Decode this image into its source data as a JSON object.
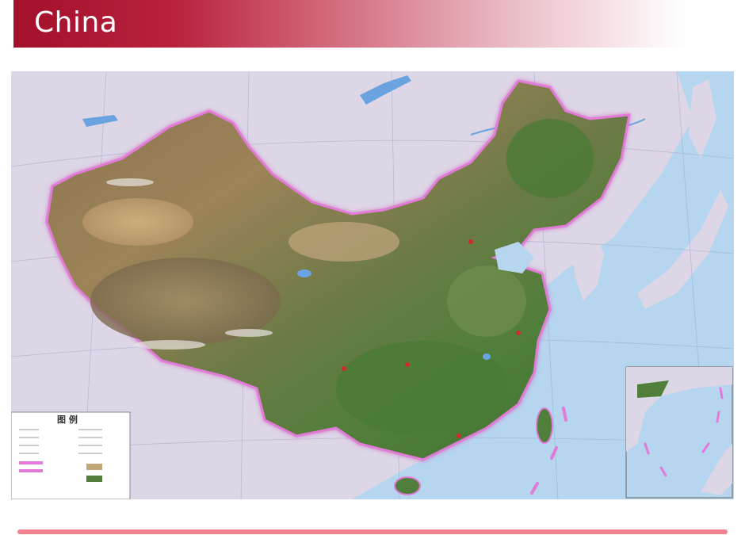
{
  "slide": {
    "title": "China"
  },
  "map": {
    "legend_heading": "图 例",
    "colors": {
      "ocean": "#b6d5ef",
      "land_neighbors": "#dcd6e6",
      "border_glow": "#e27ad8",
      "terrain_green": "#4f7f3a",
      "terrain_brown": "#8a7350",
      "terrain_sand": "#c3a57a",
      "accent_bar": "#f28290",
      "title_red": "#a3102c"
    }
  }
}
